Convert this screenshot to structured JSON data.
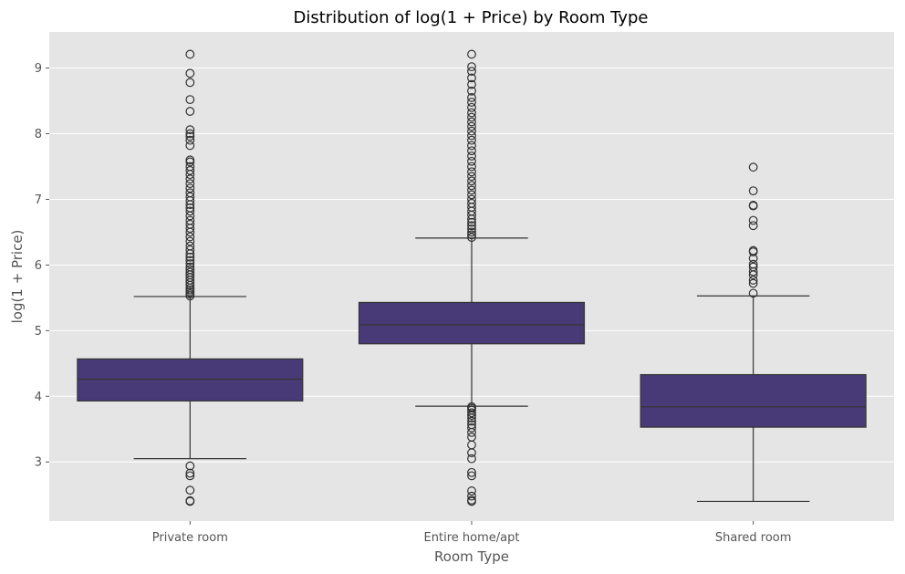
{
  "chart_data": {
    "type": "boxplot",
    "title": "Distribution of log(1 + Price) by Room Type",
    "xlabel": "Room Type",
    "ylabel": "log(1 + Price)",
    "ylim": [
      2.1,
      9.55
    ],
    "yticks": [
      3,
      4,
      5,
      6,
      7,
      8,
      9
    ],
    "grid": true,
    "colors": {
      "background": "#e5e5e5",
      "grid": "#ffffff",
      "box_fill": "#483a76",
      "line": "#333333",
      "outlier": "#333333"
    },
    "categories": [
      "Private room",
      "Entire home/apt",
      "Shared room"
    ],
    "boxes": [
      {
        "category": "Private room",
        "whislo": 3.05,
        "q1": 3.93,
        "med": 4.26,
        "q3": 4.57,
        "whishi": 5.52,
        "fliers": [
          2.4,
          2.41,
          2.57,
          2.79,
          2.83,
          2.94,
          5.53,
          5.56,
          5.59,
          5.62,
          5.65,
          5.69,
          5.73,
          5.77,
          5.81,
          5.85,
          5.89,
          5.93,
          5.97,
          6.02,
          6.07,
          6.12,
          6.17,
          6.23,
          6.29,
          6.36,
          6.43,
          6.5,
          6.56,
          6.62,
          6.68,
          6.75,
          6.82,
          6.87,
          6.92,
          6.98,
          7.04,
          7.1,
          7.17,
          7.24,
          7.31,
          7.38,
          7.44,
          7.5,
          7.57,
          7.6,
          7.82,
          7.9,
          7.96,
          8.0,
          8.06,
          8.34,
          8.52,
          8.78,
          8.92,
          9.21
        ]
      },
      {
        "category": "Entire home/apt",
        "whislo": 3.85,
        "q1": 4.8,
        "med": 5.09,
        "q3": 5.43,
        "whishi": 6.41,
        "fliers": [
          2.4,
          2.42,
          2.48,
          2.56,
          2.79,
          2.84,
          3.05,
          3.14,
          3.26,
          3.38,
          3.45,
          3.52,
          3.57,
          3.62,
          3.67,
          3.71,
          3.75,
          3.79,
          3.82,
          3.84,
          6.42,
          6.46,
          6.5,
          6.55,
          6.6,
          6.65,
          6.7,
          6.76,
          6.82,
          6.88,
          6.94,
          7.0,
          7.07,
          7.14,
          7.21,
          7.28,
          7.35,
          7.42,
          7.5,
          7.58,
          7.66,
          7.74,
          7.82,
          7.9,
          7.97,
          8.04,
          8.11,
          8.18,
          8.25,
          8.32,
          8.4,
          8.48,
          8.55,
          8.65,
          8.75,
          8.85,
          8.95,
          9.02,
          9.21
        ]
      },
      {
        "category": "Shared room",
        "whislo": 2.4,
        "q1": 3.53,
        "med": 3.84,
        "q3": 4.33,
        "whishi": 5.53,
        "fliers": [
          5.57,
          5.72,
          5.77,
          5.85,
          5.9,
          5.97,
          6.01,
          6.1,
          6.2,
          6.22,
          6.6,
          6.68,
          6.9,
          6.91,
          7.13,
          7.49
        ]
      }
    ]
  }
}
